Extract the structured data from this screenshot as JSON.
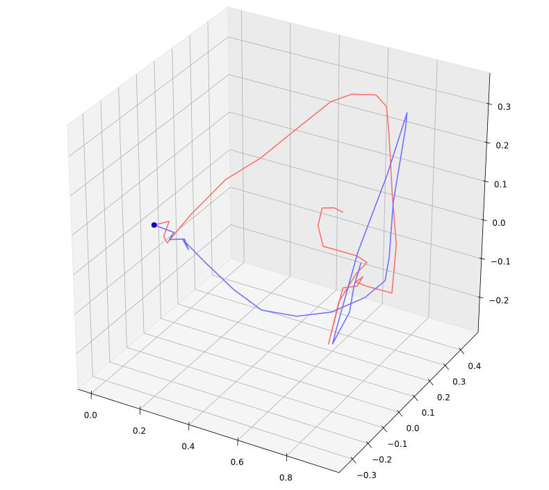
{
  "chart_data": {
    "type": "line3d",
    "xlim": [
      -0.055,
      1.015
    ],
    "ylim": [
      -0.387,
      0.513
    ],
    "zlim": [
      -0.29,
      0.38
    ],
    "xticks": [
      {
        "value": 0,
        "label": "0.0"
      },
      0.2,
      0.4,
      0.6,
      0.8
    ],
    "yticks": [
      {
        "value": -0.3,
        "label": "−0.3"
      },
      {
        "value": -0.2,
        "label": "−0.2"
      },
      {
        "value": -0.1,
        "label": "−0.1"
      },
      {
        "value": 0,
        "label": "0.0"
      },
      0.1,
      0.2,
      0.3,
      0.4
    ],
    "zticks": [
      {
        "value": -0.2,
        "label": "−0.2"
      },
      {
        "value": -0.1,
        "label": "−0.1"
      },
      {
        "value": 0,
        "label": "0.0"
      },
      0.1,
      0.2,
      0.3
    ],
    "grid": true,
    "series": [
      {
        "color": "#ff7070",
        "mode": "line",
        "x": [
          0,
          0.049,
          0.045,
          0.072,
          0.171,
          0.282,
          0.393,
          0.504,
          0.552,
          0.606,
          0.674,
          0.717,
          0.73,
          0.75,
          0.772,
          0.759,
          0.69,
          0.666,
          0.694,
          0.672,
          0.672,
          0.646,
          0.656,
          0.697,
          0.74,
          0.728,
          0.618,
          0.596,
          0.612,
          0.661,
          0.697
        ],
        "y": [
          0,
          0.018,
          -0.009,
          -0.027,
          -0.027,
          0.018,
          0.063,
          0.108,
          0.243,
          0.288,
          0.333,
          0.333,
          0.333,
          0.333,
          0.333,
          0.333,
          0.288,
          0.243,
          0.243,
          0.243,
          0.153,
          0.108,
          0.153,
          0.198,
          0.198,
          0.153,
          0.108,
          0.108,
          0.108,
          0.108,
          0.108
        ],
        "z": [
          0,
          0.012,
          -0.018,
          -0.023,
          0.068,
          0.162,
          0.221,
          0.298,
          0.329,
          0.341,
          0.334,
          0.311,
          0.242,
          0.085,
          -0.035,
          -0.163,
          -0.142,
          -0.117,
          -0.098,
          -0.126,
          -0.096,
          -0.227,
          -0.135,
          -0.072,
          -0.036,
          -0.004,
          0.018,
          0.067,
          0.115,
          0.124,
          0.119
        ]
      },
      {
        "color": "#7070ff",
        "mode": "line",
        "x": [
          0,
          0.087,
          0.081,
          0.143,
          0.172,
          0.149,
          0.259,
          0.393,
          0.518,
          0.661,
          0.772,
          0.852,
          0.874,
          0.888,
          0.87,
          0.882,
          0.886,
          0.843,
          0.76,
          0.706,
          0.692,
          0.731,
          0.746,
          0.774
        ],
        "y": [
          0,
          -0.009,
          -0.027,
          -0.027,
          -0.046,
          -0.046,
          -0.072,
          -0.099,
          -0.117,
          -0.117,
          -0.072,
          0.018,
          0.108,
          0.108,
          0.153,
          0.198,
          0.198,
          0.153,
          0.108,
          0.063,
          0.063,
          0.108,
          0.108,
          0.108
        ],
        "z": [
          0,
          0,
          -0.013,
          0,
          -0.015,
          0.007,
          -0.023,
          -0.057,
          -0.079,
          -0.068,
          -0.054,
          -0.036,
          -0.024,
          0.036,
          0.158,
          0.332,
          0.373,
          0.225,
          0.028,
          -0.163,
          -0.201,
          -0.13,
          -0.064,
          0.004
        ]
      },
      {
        "color": "#0000cc",
        "mode": "marker",
        "x": [
          0
        ],
        "y": [
          0
        ],
        "z": [
          0
        ]
      }
    ]
  }
}
